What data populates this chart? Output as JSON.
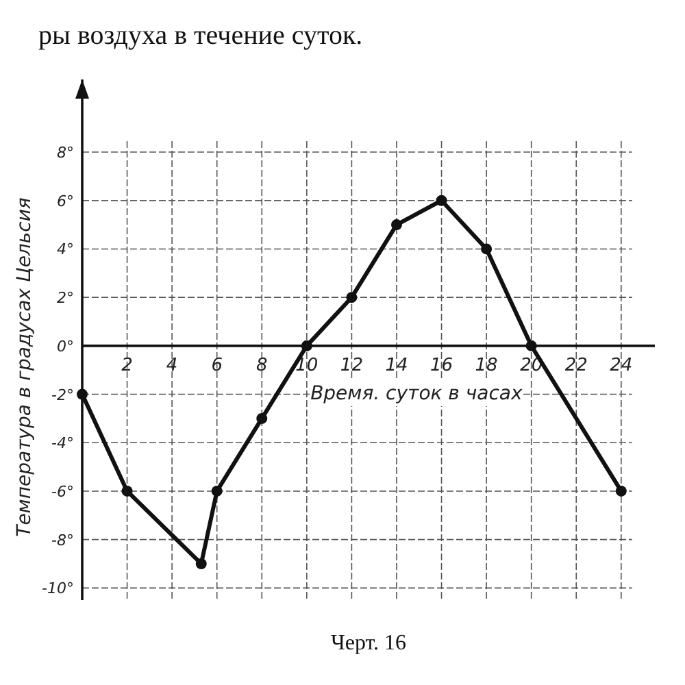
{
  "chart_data": {
    "type": "line",
    "title": "ры воздуха в течение суток.",
    "xlabel": "Время. суток в часах",
    "ylabel": "Температура в градусах Цельсия",
    "annotations": [
      "Черт. 16"
    ],
    "x": [
      0,
      2,
      5.3,
      6,
      8,
      10,
      12,
      14,
      16,
      18,
      20,
      24
    ],
    "series": [
      {
        "color": "#111111",
        "values": [
          -2,
          -6,
          -9,
          -6,
          -3,
          0,
          2,
          5,
          6,
          4,
          0,
          -6
        ]
      }
    ],
    "xlim": [
      0,
      25.5
    ],
    "ylim": [
      -10.5,
      11
    ],
    "xticks": [
      2,
      4,
      6,
      8,
      10,
      12,
      14,
      16,
      18,
      20,
      22,
      24
    ],
    "yticks": [
      {
        "value": -10,
        "label": "-10°"
      },
      {
        "value": -8,
        "label": "-8°"
      },
      {
        "value": -6,
        "label": "-6°"
      },
      {
        "value": -4,
        "label": "-4°"
      },
      {
        "value": -2,
        "label": "-2°"
      },
      {
        "value": 0,
        "label": "0°"
      },
      {
        "value": 2,
        "label": "2°"
      },
      {
        "value": 4,
        "label": "4°"
      },
      {
        "value": 6,
        "label": "6°"
      },
      {
        "value": 8,
        "label": "8°"
      }
    ],
    "grid": true,
    "marker": "circle",
    "line_style": "solid"
  }
}
